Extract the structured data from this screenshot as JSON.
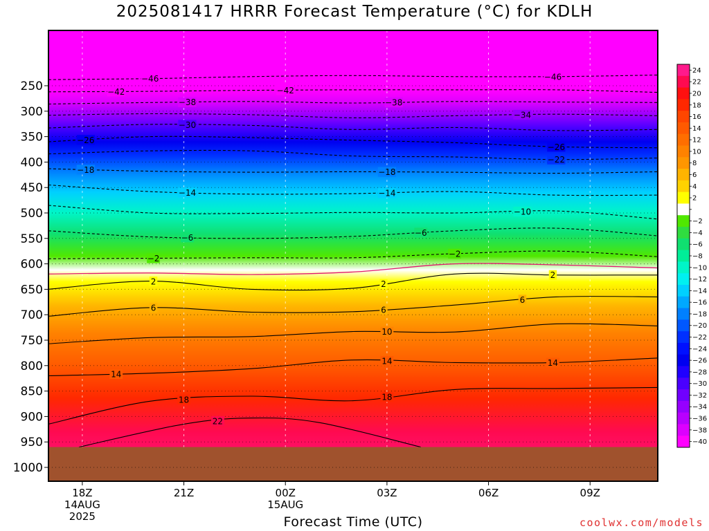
{
  "title": "2025081417 HRRR Forecast Temperature (°C) for KDLH",
  "xlabel": "Forecast Time (UTC)",
  "credit": "coolwx.com/models",
  "chart_data": {
    "type": "heatmap",
    "title": "2025081417 HRRR Forecast Temperature (°C) for KDLH",
    "xlabel": "Forecast Time (UTC)",
    "ylabel": "",
    "ylim": [
      1040,
      200
    ],
    "yticks": [
      250,
      300,
      350,
      400,
      450,
      500,
      550,
      600,
      650,
      700,
      750,
      800,
      850,
      900,
      950,
      1000
    ],
    "x_hours": [
      17,
      20,
      23,
      26,
      29,
      32,
      35
    ],
    "xlim": [
      17,
      35
    ],
    "xticks": [
      {
        "hour": 18,
        "lines": [
          "18Z",
          "14AUG",
          "2025"
        ]
      },
      {
        "hour": 21,
        "lines": [
          "21Z"
        ]
      },
      {
        "hour": 24,
        "lines": [
          "00Z",
          "15AUG"
        ]
      },
      {
        "hour": 27,
        "lines": [
          "03Z"
        ]
      },
      {
        "hour": 30,
        "lines": [
          "06Z"
        ]
      },
      {
        "hour": 33,
        "lines": [
          "09Z"
        ]
      }
    ],
    "ground_pressure": 960,
    "colorbar": {
      "levels": [
        24,
        22,
        20,
        18,
        16,
        14,
        12,
        10,
        8,
        6,
        4,
        2,
        0,
        -2,
        -4,
        -6,
        -8,
        -10,
        -12,
        -14,
        -16,
        -18,
        -20,
        -22,
        -24,
        -26,
        -28,
        -30,
        -32,
        -34,
        -36,
        -38,
        -40
      ],
      "labels": [
        "24",
        "22",
        "20",
        "18",
        "16",
        "14",
        "12",
        "10",
        "8",
        "6",
        "4",
        "2",
        "",
        "−2",
        "−4",
        "−6",
        "−8",
        "−10",
        "−12",
        "−14",
        "−16",
        "−18",
        "−20",
        "−22",
        "−24",
        "−26",
        "−28",
        "−30",
        "−32",
        "−34",
        "−36",
        "−38",
        "−40"
      ],
      "colors": [
        "#ff1a8c",
        "#ff0a50",
        "#ff1010",
        "#ff2800",
        "#ff4600",
        "#ff5a00",
        "#ff6e00",
        "#ff8200",
        "#ff9600",
        "#ffb400",
        "#ffd200",
        "#ffff00",
        "#ffffff",
        "#50e800",
        "#30dd40",
        "#10e070",
        "#00ee98",
        "#00f5c8",
        "#00f0f0",
        "#00d0ff",
        "#00a8ff",
        "#0080ff",
        "#0058ff",
        "#0030ff",
        "#0010ff",
        "#0000f0",
        "#2000ff",
        "#4a00ff",
        "#7000ff",
        "#9600ff",
        "#b800ff",
        "#dc00ff",
        "#ff00ff"
      ]
    },
    "series": [
      {
        "value": -46,
        "dashed": true,
        "pressure": [
          238,
          236,
          232,
          230,
          232,
          232,
          229
        ],
        "label_hours": [
          20,
          31.9
        ]
      },
      {
        "value": -42,
        "dashed": true,
        "pressure": [
          262,
          261,
          259,
          258,
          258,
          258,
          263
        ],
        "label_hours": [
          19,
          24
        ]
      },
      {
        "value": -38,
        "dashed": true,
        "pressure": [
          286,
          283,
          281,
          284,
          281,
          282,
          283
        ],
        "label_hours": [
          21.1,
          27.2
        ]
      },
      {
        "value": -34,
        "dashed": true,
        "pressure": [
          308,
          305,
          307,
          313,
          309,
          306,
          309
        ],
        "label_hours": [
          31
        ]
      },
      {
        "value": -30,
        "dashed": true,
        "pressure": [
          333,
          326,
          328,
          336,
          332,
          338,
          336
        ],
        "label_hours": [
          21.1
        ]
      },
      {
        "value": -26,
        "dashed": true,
        "pressure": [
          360,
          350,
          352,
          357,
          362,
          370,
          372
        ],
        "label_hours": [
          18.1,
          32
        ]
      },
      {
        "value": -22,
        "dashed": true,
        "pressure": [
          384,
          378,
          378,
          388,
          390,
          395,
          392
        ],
        "label_hours": [
          32
        ]
      },
      {
        "value": -18,
        "dashed": true,
        "pressure": [
          413,
          418,
          420,
          419,
          420,
          422,
          419
        ],
        "label_hours": [
          18.1,
          27
        ]
      },
      {
        "value": -14,
        "dashed": true,
        "pressure": [
          445,
          458,
          463,
          462,
          458,
          465,
          465
        ],
        "label_hours": [
          21.1,
          27
        ]
      },
      {
        "value": -10,
        "dashed": true,
        "pressure": [
          485,
          500,
          501,
          499,
          500,
          496,
          512
        ],
        "label_hours": [
          31
        ]
      },
      {
        "value": -6,
        "dashed": true,
        "pressure": [
          535,
          547,
          550,
          546,
          535,
          530,
          545
        ],
        "label_hours": [
          21.1,
          28
        ]
      },
      {
        "value": -2,
        "dashed": true,
        "pressure": [
          590,
          589,
          588,
          588,
          580,
          575,
          586
        ],
        "label_hours": [
          20.1,
          29
        ]
      },
      {
        "value": 2,
        "dashed": false,
        "pressure": [
          650,
          634,
          650,
          648,
          620,
          622,
          622
        ],
        "label_hours": [
          20.1,
          26.9,
          31.9
        ]
      },
      {
        "value": 6,
        "dashed": false,
        "pressure": [
          703,
          686,
          695,
          694,
          681,
          665,
          665
        ],
        "label_hours": [
          20.1,
          26.9,
          31
        ]
      },
      {
        "value": 10,
        "dashed": false,
        "pressure": [
          757,
          745,
          743,
          733,
          734,
          718,
          722
        ],
        "label_hours": [
          27
        ]
      },
      {
        "value": 14,
        "dashed": false,
        "pressure": [
          820,
          815,
          806,
          789,
          794,
          794,
          785
        ],
        "label_hours": [
          19,
          27,
          31.9
        ]
      },
      {
        "value": 18,
        "dashed": false,
        "pressure": [
          915,
          870,
          860,
          869,
          847,
          845,
          843
        ],
        "label_hours": [
          21,
          27
        ]
      },
      {
        "value": 22,
        "dashed": false,
        "pressure": [
          960,
          915,
          903,
          912,
          960
        ],
        "hours": [
          17.9,
          21,
          23,
          25,
          28
        ],
        "label_hours": [
          22
        ]
      }
    ],
    "freezing_line": {
      "value": 0,
      "pressure": [
        620,
        618,
        621,
        616,
        600,
        602,
        608
      ]
    }
  }
}
